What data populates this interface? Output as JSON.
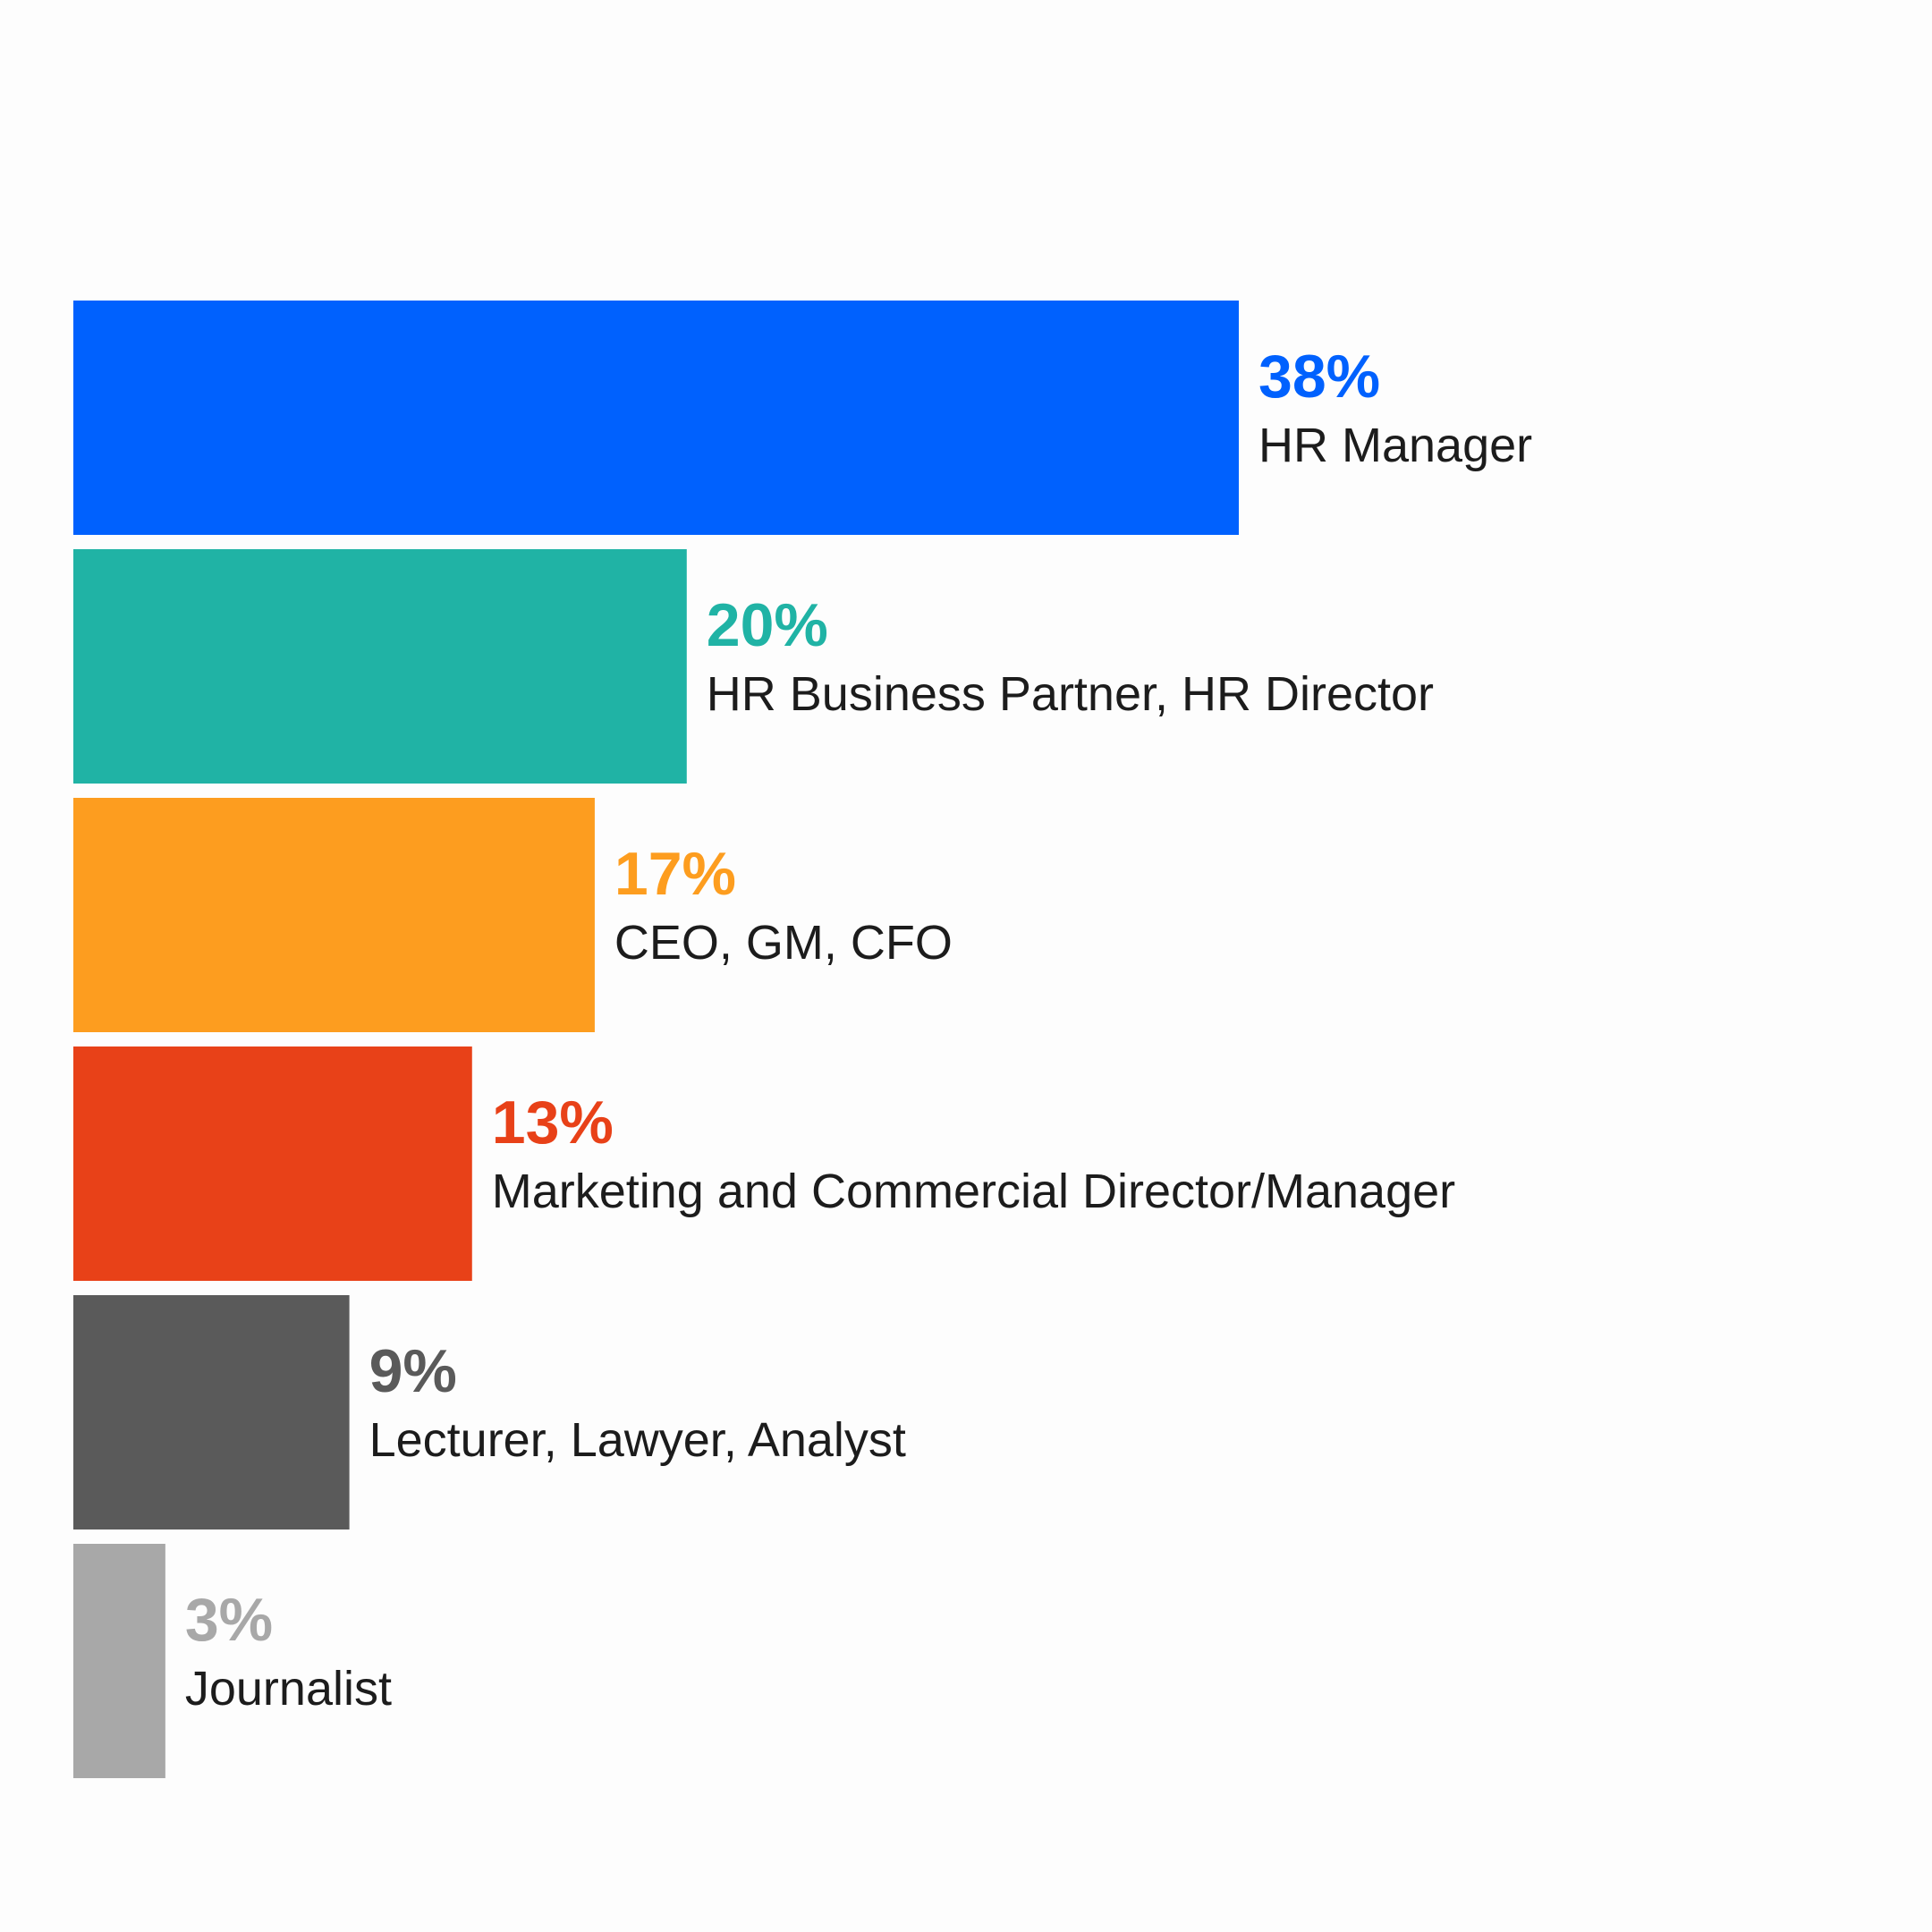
{
  "chart_data": {
    "type": "bar",
    "orientation": "horizontal",
    "unit": "%",
    "categories": [
      "HR Manager",
      "HR Business Partner, HR Director",
      "CEO, GM, CFO",
      "Marketing and Commercial Director/Manager",
      "Lecturer, Lawyer, Analyst",
      "Journalist"
    ],
    "values": [
      38,
      20,
      17,
      13,
      9,
      3
    ],
    "value_labels": [
      "38%",
      "20%",
      "17%",
      "13%",
      "9%",
      "3%"
    ],
    "colors": [
      "#0061fe",
      "#20b3a5",
      "#fd9d1f",
      "#e84118",
      "#5a5a5a",
      "#a8a8a8"
    ],
    "title": "",
    "xlabel": "",
    "ylabel": "",
    "xlim": [
      0,
      38
    ],
    "grid": false,
    "legend": "none",
    "data_labels": "right of bar"
  }
}
